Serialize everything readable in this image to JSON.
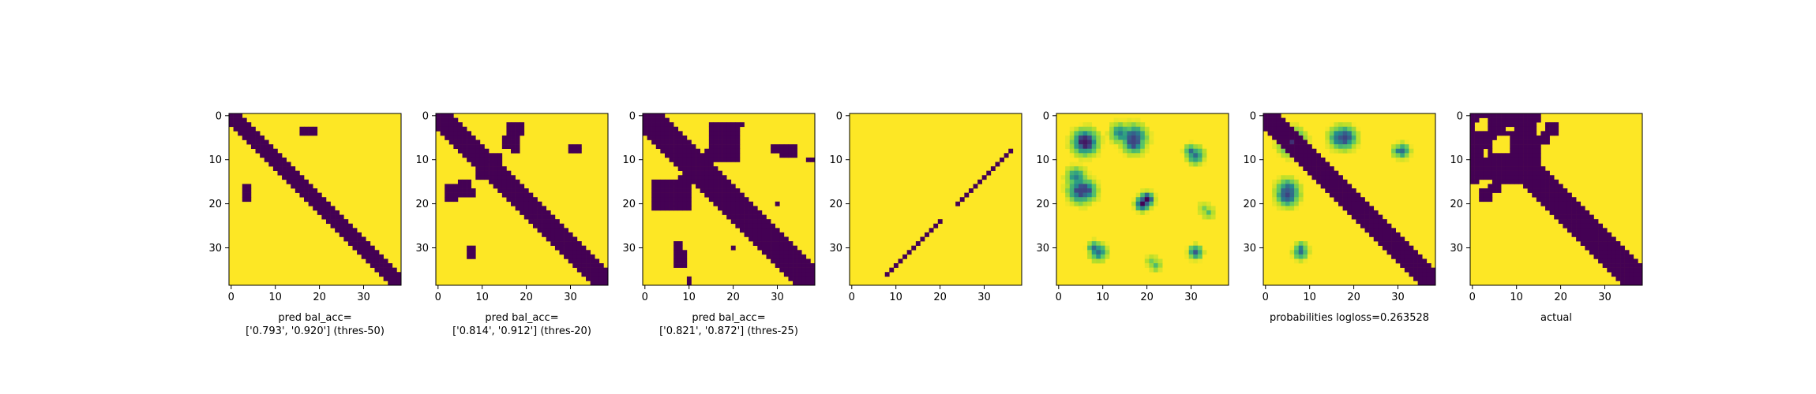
{
  "colors": {
    "dark": "#440154",
    "mid": "#21918c",
    "light": "#5ec962",
    "bright": "#fde725"
  },
  "chart_data": [
    {
      "type": "heatmap",
      "size": 39,
      "xticks": [
        0,
        10,
        20,
        30
      ],
      "yticks": [
        0,
        10,
        20,
        30
      ],
      "xlabel_lines": [
        "pred bal_acc=",
        "['0.793', '0.920'] (thres-50)"
      ],
      "cells": {
        "diagonals": [
          {
            "start": 0,
            "end": 38,
            "offsets": [
              0,
              1,
              2
            ]
          }
        ],
        "blobs": [
          {
            "r0": 3,
            "r1": 4,
            "c0": 16,
            "c1": 19
          },
          {
            "r0": 16,
            "r1": 18,
            "c0": 3,
            "c1": 4
          },
          {
            "r0": 19,
            "r1": 19,
            "c0": 3,
            "c1": 3
          }
        ]
      }
    },
    {
      "type": "heatmap",
      "size": 39,
      "xticks": [
        0,
        10,
        20,
        30
      ],
      "yticks": [
        0,
        10,
        20,
        30
      ],
      "xlabel_lines": [
        "pred bal_acc=",
        "['0.814', '0.912'] (thres-20)"
      ],
      "cells": {
        "diagonals": [
          {
            "start": 0,
            "end": 38,
            "offsets": [
              0,
              1,
              2,
              3
            ]
          }
        ],
        "blobs": [
          {
            "r0": 2,
            "r1": 4,
            "c0": 16,
            "c1": 19
          },
          {
            "r0": 5,
            "r1": 7,
            "c0": 15,
            "c1": 17
          },
          {
            "r0": 8,
            "r1": 8,
            "c0": 30,
            "c1": 32
          },
          {
            "r0": 9,
            "r1": 14,
            "c0": 10,
            "c1": 14
          },
          {
            "r0": 15,
            "r1": 16,
            "c0": 5,
            "c1": 7
          },
          {
            "r0": 17,
            "r1": 18,
            "c0": 2,
            "c1": 8
          },
          {
            "r0": 19,
            "r1": 19,
            "c0": 3,
            "c1": 4
          },
          {
            "r0": 30,
            "r1": 32,
            "c0": 7,
            "c1": 7
          }
        ]
      }
    },
    {
      "type": "heatmap",
      "size": 39,
      "xticks": [
        0,
        10,
        20,
        30
      ],
      "yticks": [
        0,
        10,
        20,
        30
      ],
      "xlabel_lines": [
        "pred bal_acc=",
        "['0.821', '0.872'] (thres-25)"
      ],
      "cells": {
        "diagonals": [
          {
            "start": 0,
            "end": 38,
            "offsets": [
              0,
              1,
              2,
              3,
              4
            ]
          },
          {
            "start": 2,
            "end": 20,
            "anti": 22,
            "width": 3
          }
        ],
        "blobs": [
          {
            "r0": 2,
            "r1": 8,
            "c0": 16,
            "c1": 21
          },
          {
            "r0": 7,
            "r1": 9,
            "c0": 31,
            "c1": 34
          },
          {
            "r0": 9,
            "r1": 15,
            "c0": 9,
            "c1": 15
          },
          {
            "r0": 15,
            "r1": 21,
            "c0": 2,
            "c1": 10
          },
          {
            "r0": 10,
            "r1": 10,
            "c0": 37,
            "c1": 38
          },
          {
            "r0": 20,
            "r1": 20,
            "c0": 30,
            "c1": 30
          },
          {
            "r0": 29,
            "r1": 31,
            "c0": 7,
            "c1": 8
          },
          {
            "r0": 30,
            "r1": 30,
            "c0": 20,
            "c1": 20
          }
        ]
      }
    },
    {
      "type": "heatmap",
      "size": 39,
      "xticks": [
        0,
        10,
        20,
        30
      ],
      "yticks": [
        0,
        10,
        20,
        30
      ],
      "xlabel_lines": [],
      "cells": {
        "points": [
          [
            8,
            36
          ],
          [
            9,
            35
          ],
          [
            10,
            34
          ],
          [
            11,
            33
          ],
          [
            12,
            32
          ],
          [
            13,
            31
          ],
          [
            14,
            30
          ],
          [
            15,
            29
          ],
          [
            16,
            28
          ],
          [
            17,
            27
          ],
          [
            18,
            26
          ],
          [
            19,
            25
          ],
          [
            20,
            24
          ],
          [
            24,
            20
          ],
          [
            25,
            19
          ],
          [
            26,
            18
          ],
          [
            27,
            17
          ],
          [
            28,
            16
          ],
          [
            29,
            15
          ],
          [
            30,
            14
          ],
          [
            31,
            13
          ],
          [
            32,
            12
          ],
          [
            33,
            11
          ],
          [
            34,
            10
          ],
          [
            35,
            9
          ],
          [
            36,
            8
          ]
        ]
      }
    },
    {
      "type": "heatmap",
      "size": 39,
      "xticks": [
        0,
        10,
        20,
        30
      ],
      "yticks": [
        0,
        10,
        20,
        30
      ],
      "xlabel_lines": [],
      "cells": {
        "blobs_soft": [
          {
            "r": 6,
            "c": 6,
            "rad": 4.5,
            "v": 0.95
          },
          {
            "r": 14,
            "c": 4,
            "rad": 3.5,
            "v": 0.7
          },
          {
            "r": 17,
            "c": 6,
            "rad": 4,
            "v": 0.85
          },
          {
            "r": 5,
            "c": 17,
            "rad": 4.5,
            "v": 0.85
          },
          {
            "r": 9,
            "c": 31,
            "rad": 3,
            "v": 0.75
          },
          {
            "r": 19,
            "c": 20,
            "rad": 2.5,
            "v": 1.0
          },
          {
            "r": 30,
            "c": 8,
            "rad": 2.2,
            "v": 0.75
          },
          {
            "r": 31,
            "c": 31,
            "rad": 2.4,
            "v": 0.8
          },
          {
            "r": 34,
            "c": 22,
            "rad": 2,
            "v": 0.5
          },
          {
            "r": 21,
            "c": 33,
            "rad": 2,
            "v": 0.4
          }
        ]
      }
    },
    {
      "type": "heatmap",
      "size": 39,
      "xticks": [
        0,
        10,
        20,
        30
      ],
      "yticks": [
        0,
        10,
        20,
        30
      ],
      "xlabel_lines": [
        "probabilities logloss=0.263528"
      ],
      "cells": {
        "diagonals": [
          {
            "start": 0,
            "end": 38,
            "offsets": [
              0,
              1,
              2,
              3
            ]
          }
        ],
        "blobs_soft": [
          {
            "r": 6,
            "c": 6,
            "rad": 4.5,
            "v": 0.9
          },
          {
            "r": 17,
            "c": 5,
            "rad": 4,
            "v": 0.8
          },
          {
            "r": 5,
            "c": 18,
            "rad": 4,
            "v": 0.85
          },
          {
            "r": 8,
            "c": 31,
            "rad": 2.5,
            "v": 0.75
          },
          {
            "r": 20,
            "c": 20,
            "rad": 2,
            "v": 0.7
          },
          {
            "r": 30,
            "c": 8,
            "rad": 2,
            "v": 0.7
          },
          {
            "r": 31,
            "c": 31,
            "rad": 2,
            "v": 0.6
          }
        ]
      }
    },
    {
      "type": "heatmap",
      "size": 39,
      "xticks": [
        0,
        10,
        20,
        30
      ],
      "yticks": [
        0,
        10,
        20,
        30
      ],
      "xlabel_lines": [
        "actual"
      ],
      "cells": {
        "diagonals": [
          {
            "start": 0,
            "end": 38,
            "offsets": [
              0,
              1,
              2,
              3,
              4
            ]
          }
        ],
        "blobs": [
          {
            "r0": 0,
            "r1": 5,
            "c0": 0,
            "c1": 6
          },
          {
            "r0": 0,
            "r1": 2,
            "c0": 8,
            "c1": 15
          },
          {
            "r0": 3,
            "r1": 7,
            "c0": 10,
            "c1": 15
          },
          {
            "r0": 4,
            "r1": 6,
            "c0": 15,
            "c1": 17
          },
          {
            "r0": 6,
            "r1": 14,
            "c0": 0,
            "c1": 2
          },
          {
            "r0": 8,
            "r1": 14,
            "c0": 4,
            "c1": 14
          },
          {
            "r0": 14,
            "r1": 15,
            "c0": 8,
            "c1": 12
          },
          {
            "r0": 17,
            "r1": 19,
            "c0": 2,
            "c1": 4
          }
        ],
        "holes": [
          {
            "r0": 1,
            "r1": 3,
            "c0": 2,
            "c1": 3
          },
          {
            "r0": 5,
            "r1": 8,
            "c0": 6,
            "c1": 8
          },
          {
            "r0": 2,
            "r1": 4,
            "c0": 15,
            "c1": 15
          }
        ]
      }
    }
  ]
}
